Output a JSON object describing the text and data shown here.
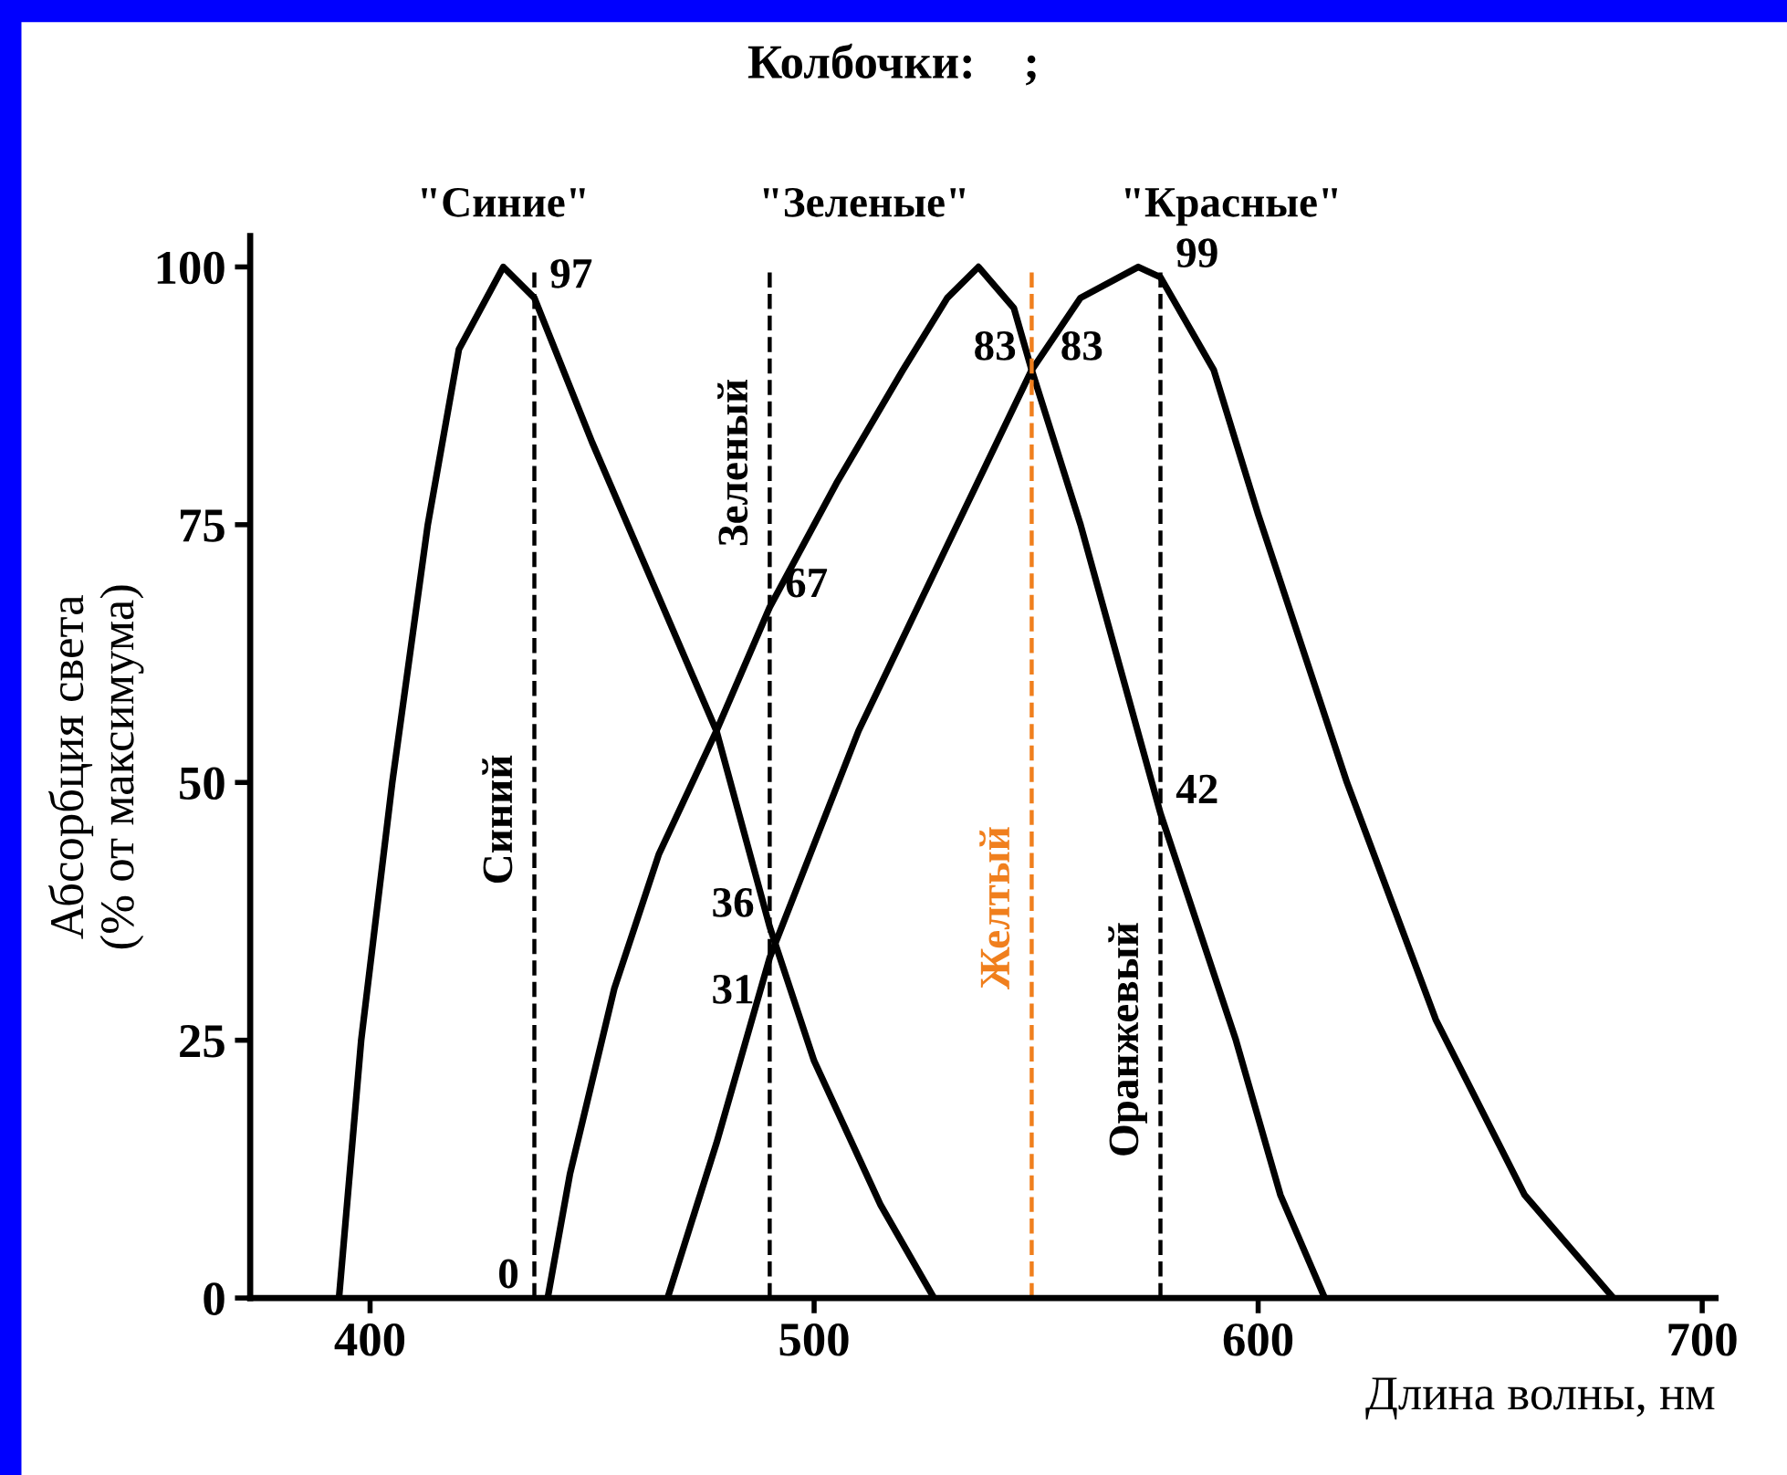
{
  "chart_data": {
    "type": "line",
    "title": "Колбочки:    ;",
    "xlabel": "Длина волны, нм",
    "ylabel": "Абсорбция света\n(% от максимума)",
    "xlim": [
      373,
      703
    ],
    "xticks": [
      400,
      500,
      600,
      700
    ],
    "ylim": [
      0,
      103
    ],
    "yticks": [
      0,
      25,
      50,
      75,
      100
    ],
    "grid": false,
    "legend": false,
    "marker": "none",
    "line_style": "solid",
    "series": [
      {
        "name": "\"Синие\"",
        "color": "#000000",
        "x": [
          393,
          398,
          405,
          413,
          420,
          430,
          437,
          450,
          465,
          478,
          490,
          500,
          515,
          527
        ],
        "values": [
          0,
          25,
          50,
          75,
          92,
          100,
          97,
          83,
          68,
          55,
          36,
          23,
          9,
          0
        ]
      },
      {
        "name": "\"Зеленые\"",
        "color": "#000000",
        "x": [
          440,
          445,
          455,
          465,
          478,
          490,
          505,
          520,
          530,
          537,
          545,
          549,
          560,
          578,
          595,
          605,
          615
        ],
        "values": [
          0,
          12,
          30,
          43,
          55,
          67,
          79,
          90,
          97,
          100,
          96,
          90,
          75,
          47,
          25,
          10,
          0
        ]
      },
      {
        "name": "\"Красные\"",
        "color": "#000000",
        "x": [
          467,
          478,
          490,
          510,
          530,
          549,
          560,
          573,
          578,
          590,
          600,
          620,
          640,
          660,
          680
        ],
        "values": [
          0,
          15,
          33,
          55,
          73,
          90,
          97,
          100,
          99,
          90,
          76,
          50,
          27,
          10,
          0
        ]
      }
    ],
    "ref_lines": [
      {
        "axis": "x",
        "value": 437,
        "label": "Синий",
        "color": "#000000",
        "line_style": "dashed"
      },
      {
        "axis": "x",
        "value": 490,
        "label": "Зеленый",
        "color": "#000000",
        "line_style": "dashed"
      },
      {
        "axis": "x",
        "value": 549,
        "label": "Желтый",
        "color": "#f07f1d",
        "line_style": "dashed"
      },
      {
        "axis": "x",
        "value": 578,
        "label": "Оранжевый",
        "color": "#000000",
        "line_style": "dashed"
      }
    ],
    "annotations": [
      {
        "text": "97",
        "x": 437,
        "y": 97
      },
      {
        "text": "0",
        "x": 437,
        "y": 0
      },
      {
        "text": "67",
        "x": 490,
        "y": 67
      },
      {
        "text": "36",
        "x": 490,
        "y": 36
      },
      {
        "text": "31",
        "x": 490,
        "y": 33
      },
      {
        "text": "83",
        "x": 549,
        "y": 90
      },
      {
        "text": "83",
        "x": 552,
        "y": 90
      },
      {
        "text": "42",
        "x": 578,
        "y": 47
      },
      {
        "text": "99",
        "x": 578,
        "y": 99
      }
    ]
  }
}
